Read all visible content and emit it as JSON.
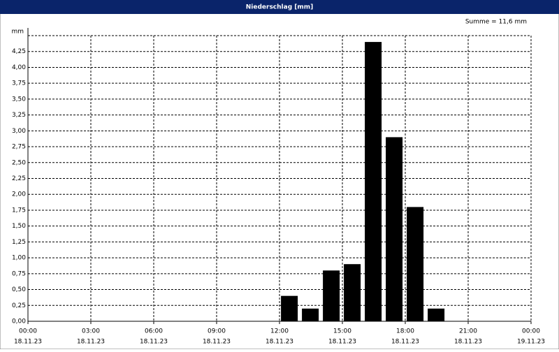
{
  "window": {
    "title": "Niederschlag [mm]"
  },
  "chart_data": {
    "type": "bar",
    "y_unit_label": "mm",
    "annotation": "Summe = 11,6 mm",
    "x": [
      12,
      13,
      14,
      15,
      16,
      17,
      18,
      19
    ],
    "values": [
      0.4,
      0.2,
      0.8,
      0.9,
      4.4,
      2.9,
      1.8,
      0.2
    ],
    "color": "#000000",
    "xlim": [
      0,
      24
    ],
    "xticks": [
      {
        "value": 0,
        "label": "00:00"
      },
      {
        "value": 3,
        "label": "03:00"
      },
      {
        "value": 6,
        "label": "06:00"
      },
      {
        "value": 9,
        "label": "09:00"
      },
      {
        "value": 12,
        "label": "12:00"
      },
      {
        "value": 15,
        "label": "15:00"
      },
      {
        "value": 18,
        "label": "18:00"
      },
      {
        "value": 21,
        "label": "21:00"
      },
      {
        "value": 24,
        "label": "00:00"
      }
    ],
    "xtick_dates": [
      "18.11.23",
      "18.11.23",
      "18.11.23",
      "18.11.23",
      "18.11.23",
      "18.11.23",
      "18.11.23",
      "18.11.23",
      "19.11.23"
    ],
    "ylim": [
      0,
      4.5
    ],
    "yticks": [
      {
        "value": 0,
        "label": "0,00"
      },
      {
        "value": 0.25,
        "label": "0,25"
      },
      {
        "value": 0.5,
        "label": "0,50"
      },
      {
        "value": 0.75,
        "label": "0,75"
      },
      {
        "value": 1,
        "label": "1,00"
      },
      {
        "value": 1.25,
        "label": "1,25"
      },
      {
        "value": 1.5,
        "label": "1,50"
      },
      {
        "value": 1.75,
        "label": "1,75"
      },
      {
        "value": 2,
        "label": "2,00"
      },
      {
        "value": 2.25,
        "label": "2,25"
      },
      {
        "value": 2.5,
        "label": "2,50"
      },
      {
        "value": 2.75,
        "label": "2,75"
      },
      {
        "value": 3,
        "label": "3,00"
      },
      {
        "value": 3.25,
        "label": "3,25"
      },
      {
        "value": 3.5,
        "label": "3,50"
      },
      {
        "value": 3.75,
        "label": "3,75"
      },
      {
        "value": 4,
        "label": "4,00"
      },
      {
        "value": 4.25,
        "label": "4,25"
      }
    ],
    "grid": true
  }
}
